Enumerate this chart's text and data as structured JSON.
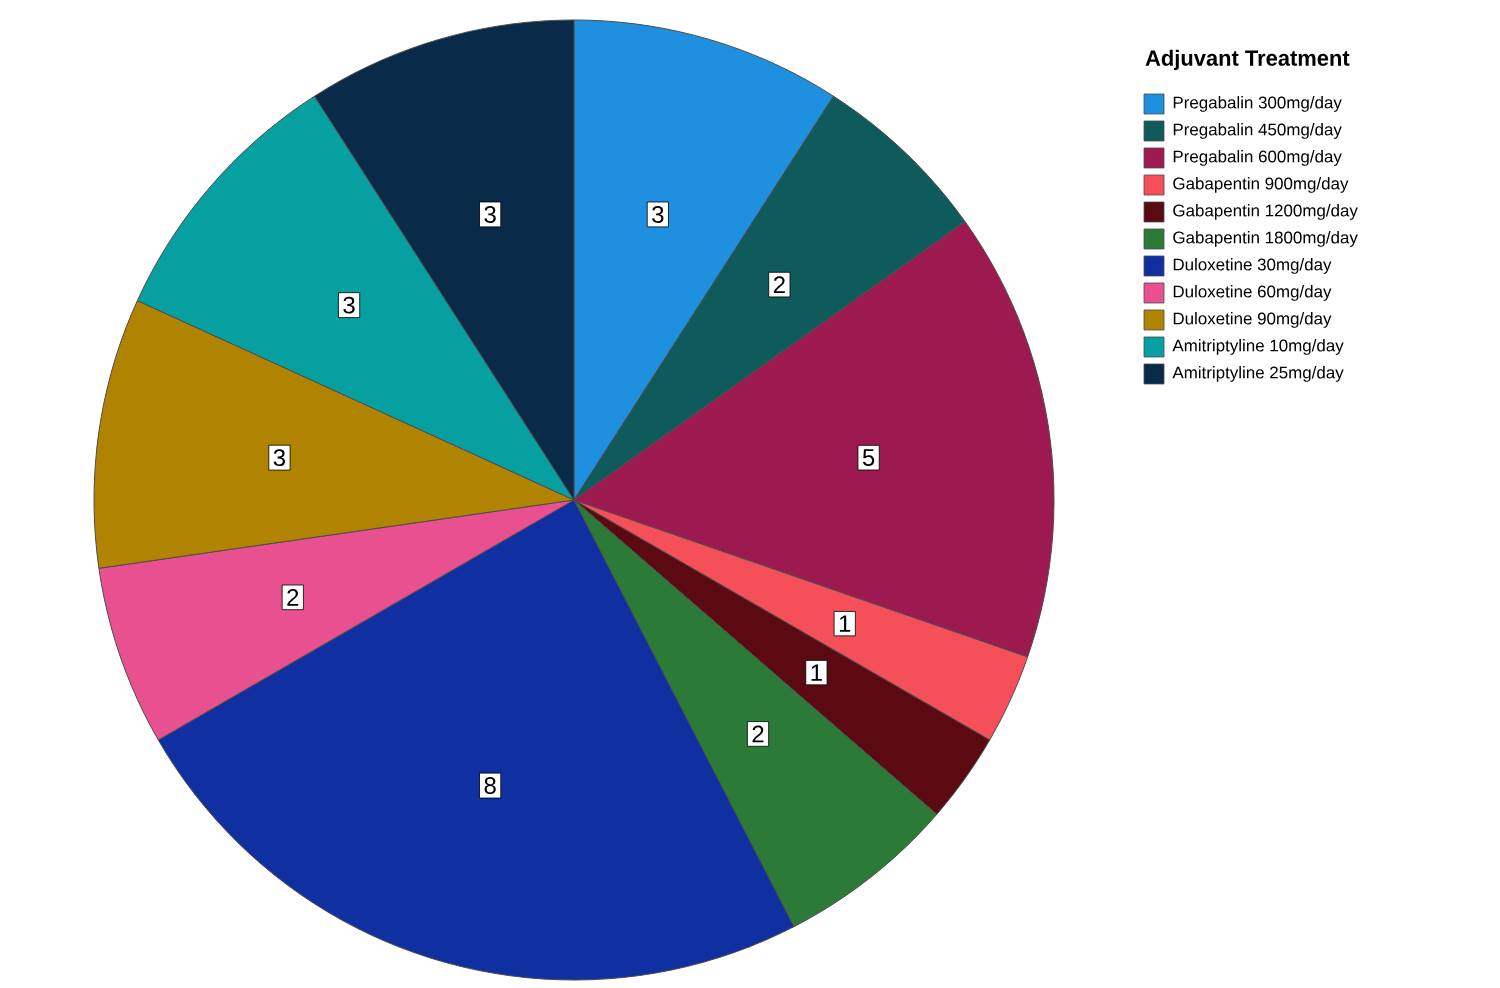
{
  "chart_data": {
    "type": "pie",
    "legend_title": "Adjuvant Treatment",
    "categories": [
      "Pregabalin 300mg/day",
      "Pregabalin 450mg/day",
      "Pregabalin 600mg/day",
      "Gabapentin 900mg/day",
      "Gabapentin 1200mg/day",
      "Gabapentin 1800mg/day",
      "Duloxetine 30mg/day",
      "Duloxetine 60mg/day",
      "Duloxetine 90mg/day",
      "Amitriptyline 10mg/day",
      "Amitriptyline 25mg/day"
    ],
    "values": [
      3,
      2,
      5,
      1,
      1,
      2,
      8,
      2,
      3,
      3,
      3
    ],
    "colors": [
      "#1f8fe0",
      "#0f5b5b",
      "#9c1a4f",
      "#f5505a",
      "#5a0a10",
      "#2b7a37",
      "#102fa0",
      "#e85090",
      "#b08400",
      "#07a0a0",
      "#0a2a4a"
    ],
    "data_labels": true,
    "legend": "right"
  }
}
